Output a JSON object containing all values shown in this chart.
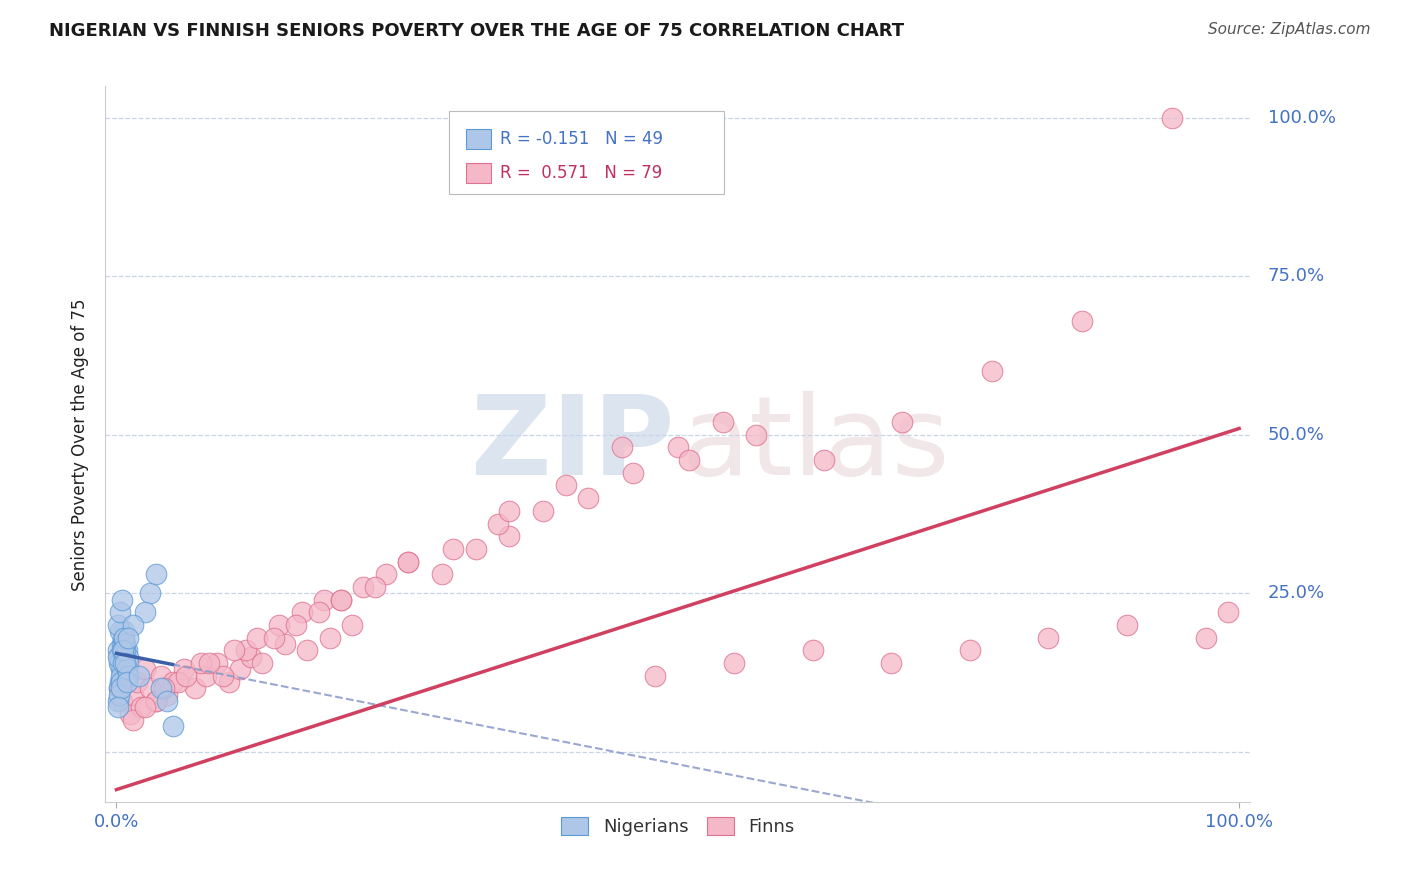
{
  "title": "NIGERIAN VS FINNISH SENIORS POVERTY OVER THE AGE OF 75 CORRELATION CHART",
  "source_text": "Source: ZipAtlas.com",
  "ylabel": "Seniors Poverty Over the Age of 75",
  "xlim": [
    -0.01,
    1.01
  ],
  "ylim": [
    -0.08,
    1.05
  ],
  "yticks": [
    0.0,
    0.25,
    0.5,
    0.75,
    1.0
  ],
  "ytick_labels": [
    "",
    "25.0%",
    "50.0%",
    "75.0%",
    "100.0%"
  ],
  "nigerian_color": "#aec6e8",
  "finn_color": "#f4b8c8",
  "nigerian_edge": "#5b9bd5",
  "finn_edge": "#e07090",
  "blue_line_color": "#3a5fa8",
  "pink_line_color": "#d04060",
  "dashed_line_color": "#8898c8",
  "title_color": "#1a1a1a",
  "label_color": "#4472c4",
  "pink_label_color": "#c03060",
  "background_color": "#ffffff",
  "grid_color": "#c8d4e8",
  "nigerian_x": [
    0.001,
    0.002,
    0.003,
    0.004,
    0.005,
    0.006,
    0.007,
    0.008,
    0.009,
    0.01,
    0.003,
    0.005,
    0.007,
    0.002,
    0.008,
    0.004,
    0.006,
    0.001,
    0.009,
    0.01,
    0.002,
    0.003,
    0.005,
    0.007,
    0.001,
    0.006,
    0.004,
    0.008,
    0.009,
    0.01,
    0.001,
    0.003,
    0.005,
    0.002,
    0.007,
    0.004,
    0.006,
    0.008,
    0.009,
    0.001,
    0.03,
    0.035,
    0.025,
    0.04,
    0.05,
    0.015,
    0.02,
    0.045,
    0.01
  ],
  "nigerian_y": [
    0.16,
    0.15,
    0.14,
    0.13,
    0.17,
    0.18,
    0.19,
    0.12,
    0.16,
    0.15,
    0.11,
    0.13,
    0.17,
    0.14,
    0.16,
    0.12,
    0.18,
    0.15,
    0.13,
    0.14,
    0.1,
    0.19,
    0.16,
    0.15,
    0.08,
    0.14,
    0.11,
    0.17,
    0.13,
    0.12,
    0.2,
    0.22,
    0.24,
    0.09,
    0.18,
    0.1,
    0.16,
    0.14,
    0.11,
    0.07,
    0.25,
    0.28,
    0.22,
    0.1,
    0.04,
    0.2,
    0.12,
    0.08,
    0.18
  ],
  "finn_x": [
    0.002,
    0.005,
    0.008,
    0.012,
    0.015,
    0.018,
    0.022,
    0.025,
    0.03,
    0.035,
    0.04,
    0.045,
    0.05,
    0.06,
    0.07,
    0.08,
    0.09,
    0.1,
    0.11,
    0.12,
    0.035,
    0.055,
    0.075,
    0.095,
    0.115,
    0.13,
    0.15,
    0.17,
    0.19,
    0.21,
    0.015,
    0.025,
    0.042,
    0.062,
    0.082,
    0.105,
    0.125,
    0.145,
    0.165,
    0.185,
    0.14,
    0.16,
    0.18,
    0.2,
    0.22,
    0.24,
    0.26,
    0.29,
    0.32,
    0.35,
    0.2,
    0.23,
    0.26,
    0.3,
    0.34,
    0.38,
    0.42,
    0.46,
    0.5,
    0.54,
    0.35,
    0.4,
    0.45,
    0.51,
    0.57,
    0.63,
    0.7,
    0.78,
    0.86,
    0.94,
    0.48,
    0.55,
    0.62,
    0.69,
    0.76,
    0.83,
    0.9,
    0.97,
    0.99
  ],
  "finn_y": [
    0.1,
    0.08,
    0.12,
    0.06,
    0.09,
    0.11,
    0.07,
    0.13,
    0.1,
    0.08,
    0.12,
    0.09,
    0.11,
    0.13,
    0.1,
    0.12,
    0.14,
    0.11,
    0.13,
    0.15,
    0.08,
    0.11,
    0.14,
    0.12,
    0.16,
    0.14,
    0.17,
    0.16,
    0.18,
    0.2,
    0.05,
    0.07,
    0.1,
    0.12,
    0.14,
    0.16,
    0.18,
    0.2,
    0.22,
    0.24,
    0.18,
    0.2,
    0.22,
    0.24,
    0.26,
    0.28,
    0.3,
    0.28,
    0.32,
    0.34,
    0.24,
    0.26,
    0.3,
    0.32,
    0.36,
    0.38,
    0.4,
    0.44,
    0.48,
    0.52,
    0.38,
    0.42,
    0.48,
    0.46,
    0.5,
    0.46,
    0.52,
    0.6,
    0.68,
    1.0,
    0.12,
    0.14,
    0.16,
    0.14,
    0.16,
    0.18,
    0.2,
    0.18,
    0.22
  ]
}
